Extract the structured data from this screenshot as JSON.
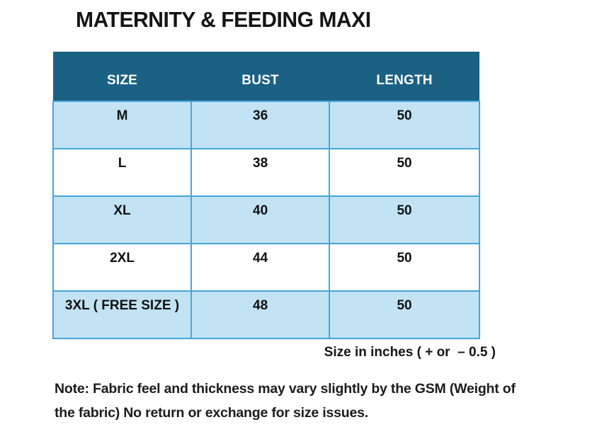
{
  "title": "MATERNITY & FEEDING MAXI",
  "chart_data": {
    "type": "table",
    "title": "MATERNITY & FEEDING MAXI",
    "columns": [
      "SIZE",
      "BUST",
      "LENGTH"
    ],
    "rows": [
      [
        "M",
        "36",
        "50"
      ],
      [
        "L",
        "38",
        "50"
      ],
      [
        "XL",
        "40",
        "50"
      ],
      [
        "2XL",
        "44",
        "50"
      ],
      [
        "3XL ( FREE SIZE )",
        "48",
        "50"
      ]
    ],
    "units": "inches",
    "footnote": "Size in inches ( + or  – 0.5 )",
    "note": "Note: Fabric feel and thickness may vary slightly by the GSM (Weight of the fabric) No return or exchange for size issues."
  },
  "note_lines": {
    "line1": "Note: Fabric feel and thickness may vary slightly by the GSM (Weight of",
    "line2": "the fabric) No return or exchange for size issues."
  },
  "colors": {
    "header_bg": "#1b6184",
    "header_text": "#ffffff",
    "row_alt_bg": "#c1e3f3",
    "row_bg": "#ffffff",
    "border": "#45a6da",
    "text": "#111111"
  }
}
